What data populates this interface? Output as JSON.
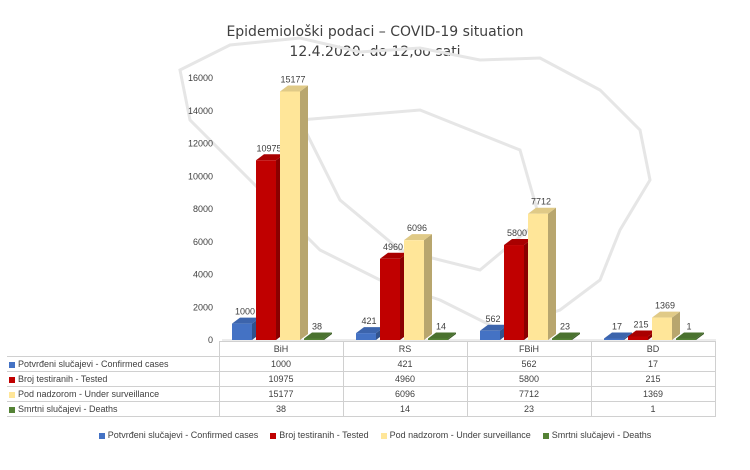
{
  "title_line1": "Epidemiološki podaci – COVID-19 situation",
  "title_line2": "12.4.2020. do 12,oo sati",
  "chart_data": {
    "type": "bar",
    "title": "Epidemiološki podaci – COVID-19 situation 12.4.2020. do 12,oo sati",
    "categories": [
      "BiH",
      "RS",
      "FBiH",
      "BD"
    ],
    "yticks": [
      "0",
      "2000",
      "4000",
      "6000",
      "8000",
      "10000",
      "12000",
      "14000",
      "16000"
    ],
    "ylim": [
      0,
      16000
    ],
    "grid": false,
    "legend_position": "bottom",
    "series": [
      {
        "name": "Potvrđeni slučajevi - Confirmed cases",
        "color": "#4472c4",
        "values": [
          1000,
          421,
          562,
          17
        ]
      },
      {
        "name": "Broj testiranih - Tested",
        "color": "#c00000",
        "values": [
          10975,
          4960,
          5800,
          215
        ]
      },
      {
        "name": "Pod nadzorom - Under surveillance",
        "color": "#ffe699",
        "values": [
          15177,
          6096,
          7712,
          1369
        ]
      },
      {
        "name": "Smrtni slučajevi - Deaths",
        "color": "#548235",
        "values": [
          38,
          14,
          23,
          1
        ]
      }
    ]
  }
}
